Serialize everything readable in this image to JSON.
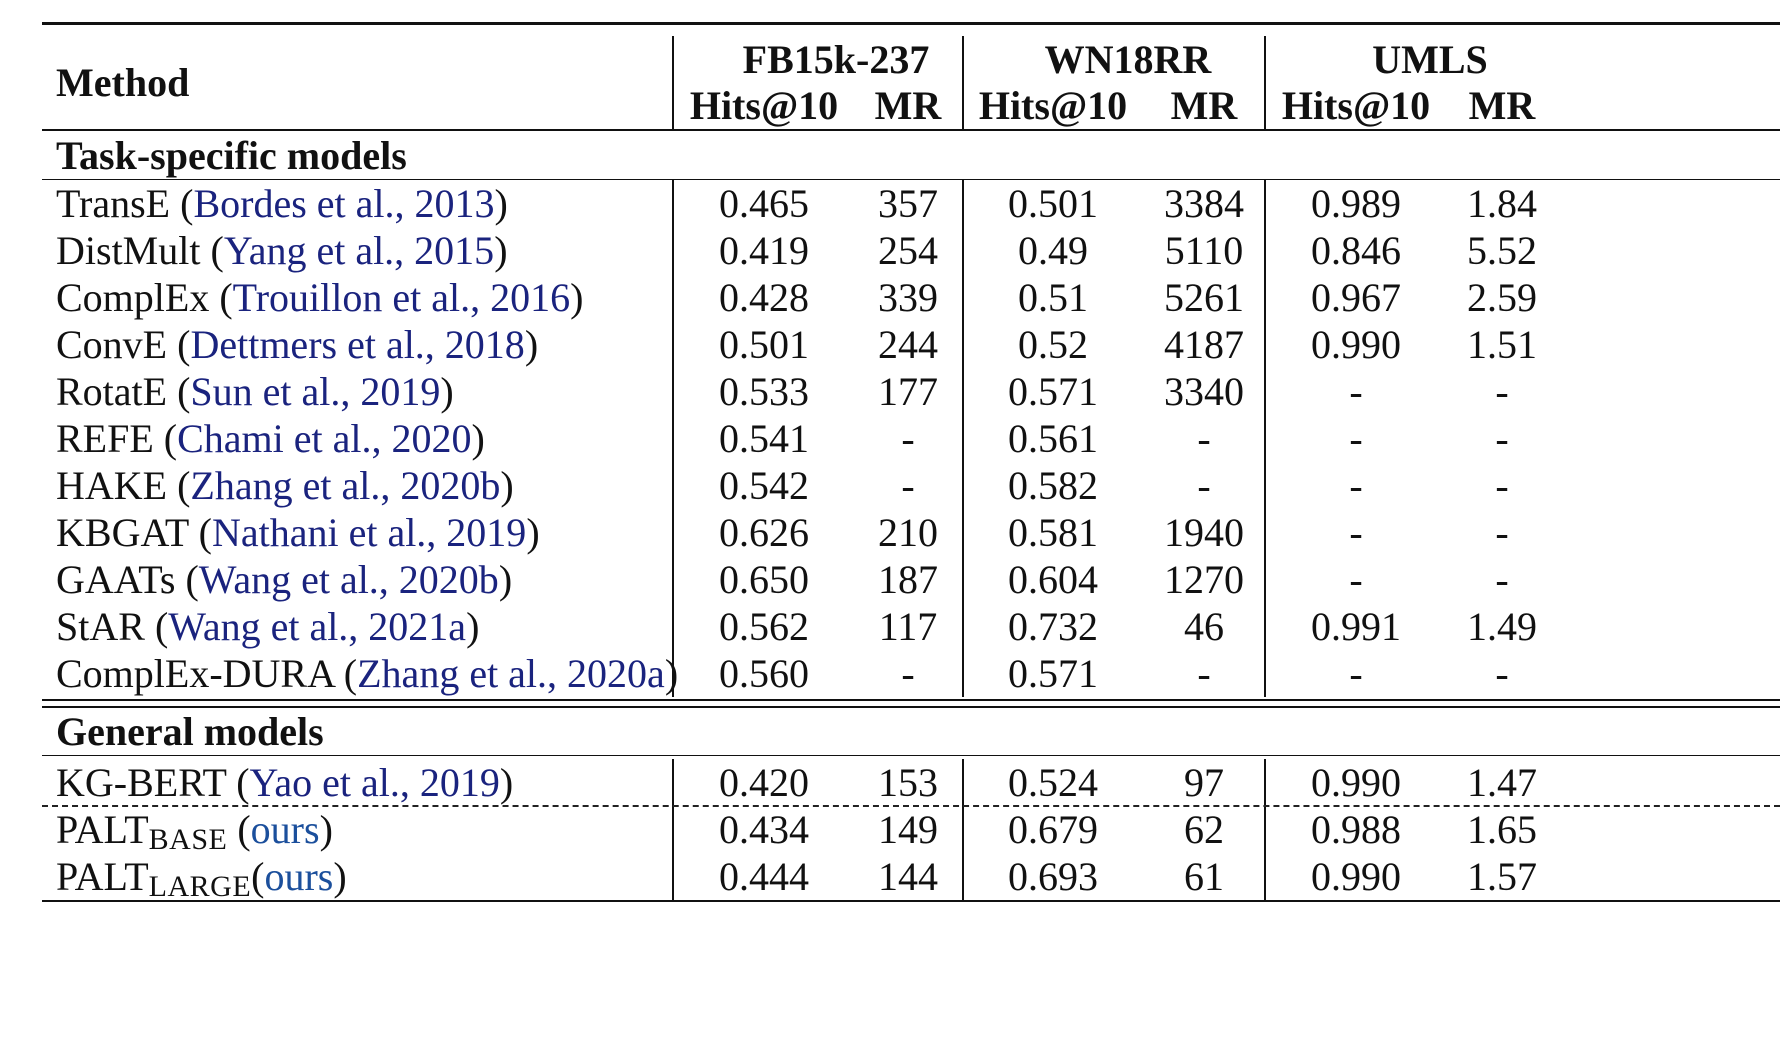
{
  "header": {
    "method": "Method",
    "groups": [
      "FB15k-237",
      "WN18RR",
      "UMLS"
    ],
    "metrics": [
      "Hits@10",
      "MR",
      "Hits@10",
      "MR",
      "Hits@10",
      "MR"
    ]
  },
  "sections": [
    {
      "title": "Task-specific models",
      "rows": [
        {
          "name": "TransE",
          "cite": "Bordes et al., 2013",
          "values": [
            "0.465",
            "357",
            "0.501",
            "3384",
            "0.989",
            "1.84"
          ]
        },
        {
          "name": "DistMult",
          "cite": "Yang et al., 2015",
          "values": [
            "0.419",
            "254",
            "0.49",
            "5110",
            "0.846",
            "5.52"
          ]
        },
        {
          "name": "ComplEx",
          "cite": "Trouillon et al., 2016",
          "values": [
            "0.428",
            "339",
            "0.51",
            "5261",
            "0.967",
            "2.59"
          ]
        },
        {
          "name": "ConvE",
          "cite": "Dettmers et al., 2018",
          "values": [
            "0.501",
            "244",
            "0.52",
            "4187",
            "0.990",
            "1.51"
          ]
        },
        {
          "name": "RotatE",
          "cite": "Sun et al., 2019",
          "values": [
            "0.533",
            "177",
            "0.571",
            "3340",
            "-",
            "-"
          ]
        },
        {
          "name": "REFE",
          "cite": "Chami et al., 2020",
          "values": [
            "0.541",
            "-",
            "0.561",
            "-",
            "-",
            "-"
          ]
        },
        {
          "name": "HAKE",
          "cite": "Zhang et al., 2020b",
          "values": [
            "0.542",
            "-",
            "0.582",
            "-",
            "-",
            "-"
          ]
        },
        {
          "name": "KBGAT",
          "cite": "Nathani et al., 2019",
          "values": [
            "0.626",
            "210",
            "0.581",
            "1940",
            "-",
            "-"
          ]
        },
        {
          "name": "GAATs",
          "cite": "Wang et al., 2020b",
          "values": [
            "0.650",
            "187",
            "0.604",
            "1270",
            "-",
            "-"
          ]
        },
        {
          "name": "StAR",
          "cite": "Wang et al., 2021a",
          "values": [
            "0.562",
            "117",
            "0.732",
            "46",
            "0.991",
            "1.49"
          ]
        },
        {
          "name": "ComplEx-DURA",
          "cite": "Zhang et al., 2020a",
          "values": [
            "0.560",
            "-",
            "0.571",
            "-",
            "-",
            "-"
          ]
        }
      ]
    },
    {
      "title": "General models",
      "rows": [
        {
          "name": "KG-BERT",
          "cite": "Yao et al., 2019",
          "values": [
            "0.420",
            "153",
            "0.524",
            "97",
            "0.990",
            "1.47"
          ]
        },
        {
          "name": "PALT",
          "sub": "BASE",
          "ours": "ours",
          "values": [
            "0.434",
            "149",
            "0.679",
            "62",
            "0.988",
            "1.65"
          ]
        },
        {
          "name": "PALT",
          "sub": "LARGE",
          "ours": "ours",
          "values": [
            "0.444",
            "144",
            "0.693",
            "61",
            "0.990",
            "1.57"
          ]
        }
      ]
    }
  ]
}
